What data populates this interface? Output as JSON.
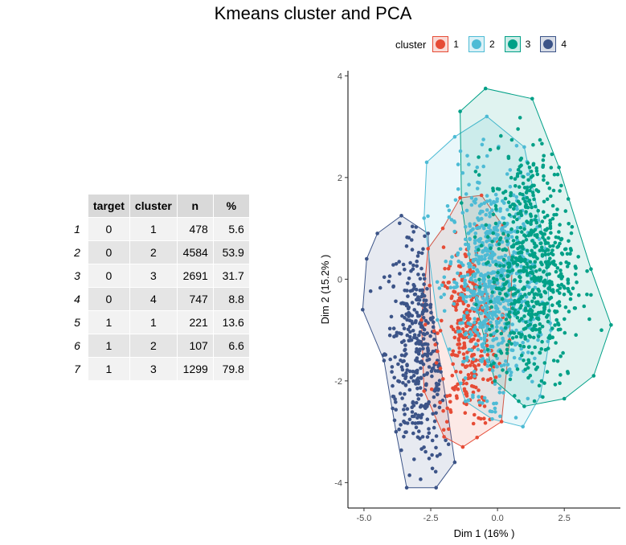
{
  "title": "Kmeans cluster and PCA",
  "legend": {
    "title": "cluster",
    "entries": [
      {
        "label": "1",
        "color": "#E64B35"
      },
      {
        "label": "2",
        "color": "#4DBBD5"
      },
      {
        "label": "3",
        "color": "#00A087"
      },
      {
        "label": "4",
        "color": "#3C5488"
      }
    ]
  },
  "table": {
    "headers": [
      "target",
      "cluster",
      "n",
      "%"
    ],
    "rows": [
      {
        "id": "1",
        "target": "0",
        "cluster": "1",
        "n": "478",
        "pct": "5.6"
      },
      {
        "id": "2",
        "target": "0",
        "cluster": "2",
        "n": "4584",
        "pct": "53.9"
      },
      {
        "id": "3",
        "target": "0",
        "cluster": "3",
        "n": "2691",
        "pct": "31.7"
      },
      {
        "id": "4",
        "target": "0",
        "cluster": "4",
        "n": "747",
        "pct": "8.8"
      },
      {
        "id": "5",
        "target": "1",
        "cluster": "1",
        "n": "221",
        "pct": "13.6"
      },
      {
        "id": "6",
        "target": "1",
        "cluster": "2",
        "n": "107",
        "pct": "6.6"
      },
      {
        "id": "7",
        "target": "1",
        "cluster": "3",
        "n": "1299",
        "pct": "79.8"
      }
    ]
  },
  "chart_data": {
    "type": "scatter",
    "title": "Kmeans cluster and PCA",
    "xlabel": "Dim 1 (16% )",
    "ylabel": "Dim 2 (15.2% )",
    "xlim": [
      -5.6,
      4.6
    ],
    "ylim": [
      -4.5,
      4.1
    ],
    "xticks": [
      {
        "value": -5,
        "label": "-5.0"
      },
      {
        "value": -2.5,
        "label": "-2.5"
      },
      {
        "value": 0,
        "label": "0.0"
      },
      {
        "value": 2.5,
        "label": "2.5"
      }
    ],
    "yticks": [
      {
        "value": -4,
        "label": "-4"
      },
      {
        "value": -2,
        "label": "-2"
      },
      {
        "value": 0,
        "label": "0"
      },
      {
        "value": 2,
        "label": "2"
      },
      {
        "value": 4,
        "label": "4"
      }
    ],
    "grid": false,
    "legend_position": "top",
    "series": [
      {
        "name": "1",
        "color": "#E64B35",
        "center": [
          -1.1,
          -1.1
        ],
        "spread": [
          0.55,
          0.9
        ],
        "count": 320,
        "hull": [
          [
            -2.05,
            1.0
          ],
          [
            -1.4,
            1.6
          ],
          [
            -0.6,
            1.65
          ],
          [
            0.2,
            1.05
          ],
          [
            0.55,
            0.3
          ],
          [
            0.45,
            -1.2
          ],
          [
            0.15,
            -2.8
          ],
          [
            -1.3,
            -3.3
          ],
          [
            -2.0,
            -3.1
          ],
          [
            -2.75,
            -2.2
          ],
          [
            -2.85,
            -0.8
          ],
          [
            -2.6,
            0.6
          ]
        ]
      },
      {
        "name": "2",
        "color": "#4DBBD5",
        "center": [
          -0.2,
          -0.1
        ],
        "spread": [
          0.8,
          1.05
        ],
        "count": 700,
        "hull": [
          [
            -2.65,
            2.3
          ],
          [
            -1.6,
            2.8
          ],
          [
            -0.4,
            3.2
          ],
          [
            1.0,
            2.6
          ],
          [
            1.8,
            0.6
          ],
          [
            2.0,
            -1.0
          ],
          [
            1.6,
            -2.3
          ],
          [
            0.95,
            -2.9
          ],
          [
            -0.2,
            -2.75
          ],
          [
            -1.2,
            -2.4
          ],
          [
            -2.25,
            -0.8
          ],
          [
            -2.75,
            1.2
          ]
        ]
      },
      {
        "name": "3",
        "color": "#00A087",
        "center": [
          1.25,
          0.2
        ],
        "spread": [
          0.8,
          1.2
        ],
        "count": 650,
        "hull": [
          [
            -1.4,
            3.3
          ],
          [
            -0.45,
            3.75
          ],
          [
            1.3,
            3.55
          ],
          [
            2.3,
            2.2
          ],
          [
            3.5,
            0.2
          ],
          [
            4.25,
            -0.9
          ],
          [
            3.6,
            -1.9
          ],
          [
            2.5,
            -2.35
          ],
          [
            1.0,
            -2.5
          ],
          [
            -0.1,
            -2.0
          ],
          [
            -0.8,
            -0.5
          ],
          [
            -1.35,
            1.5
          ]
        ]
      },
      {
        "name": "4",
        "color": "#3C5488",
        "center": [
          -2.9,
          -1.4
        ],
        "spread": [
          0.65,
          1.15
        ],
        "count": 380,
        "hull": [
          [
            -4.9,
            0.4
          ],
          [
            -4.5,
            0.9
          ],
          [
            -3.6,
            1.25
          ],
          [
            -2.6,
            0.9
          ],
          [
            -2.5,
            -0.5
          ],
          [
            -1.95,
            -2.3
          ],
          [
            -1.6,
            -3.6
          ],
          [
            -2.3,
            -4.1
          ],
          [
            -3.4,
            -4.1
          ],
          [
            -3.8,
            -3.0
          ],
          [
            -4.25,
            -1.6
          ],
          [
            -5.05,
            -0.6
          ]
        ]
      }
    ]
  }
}
